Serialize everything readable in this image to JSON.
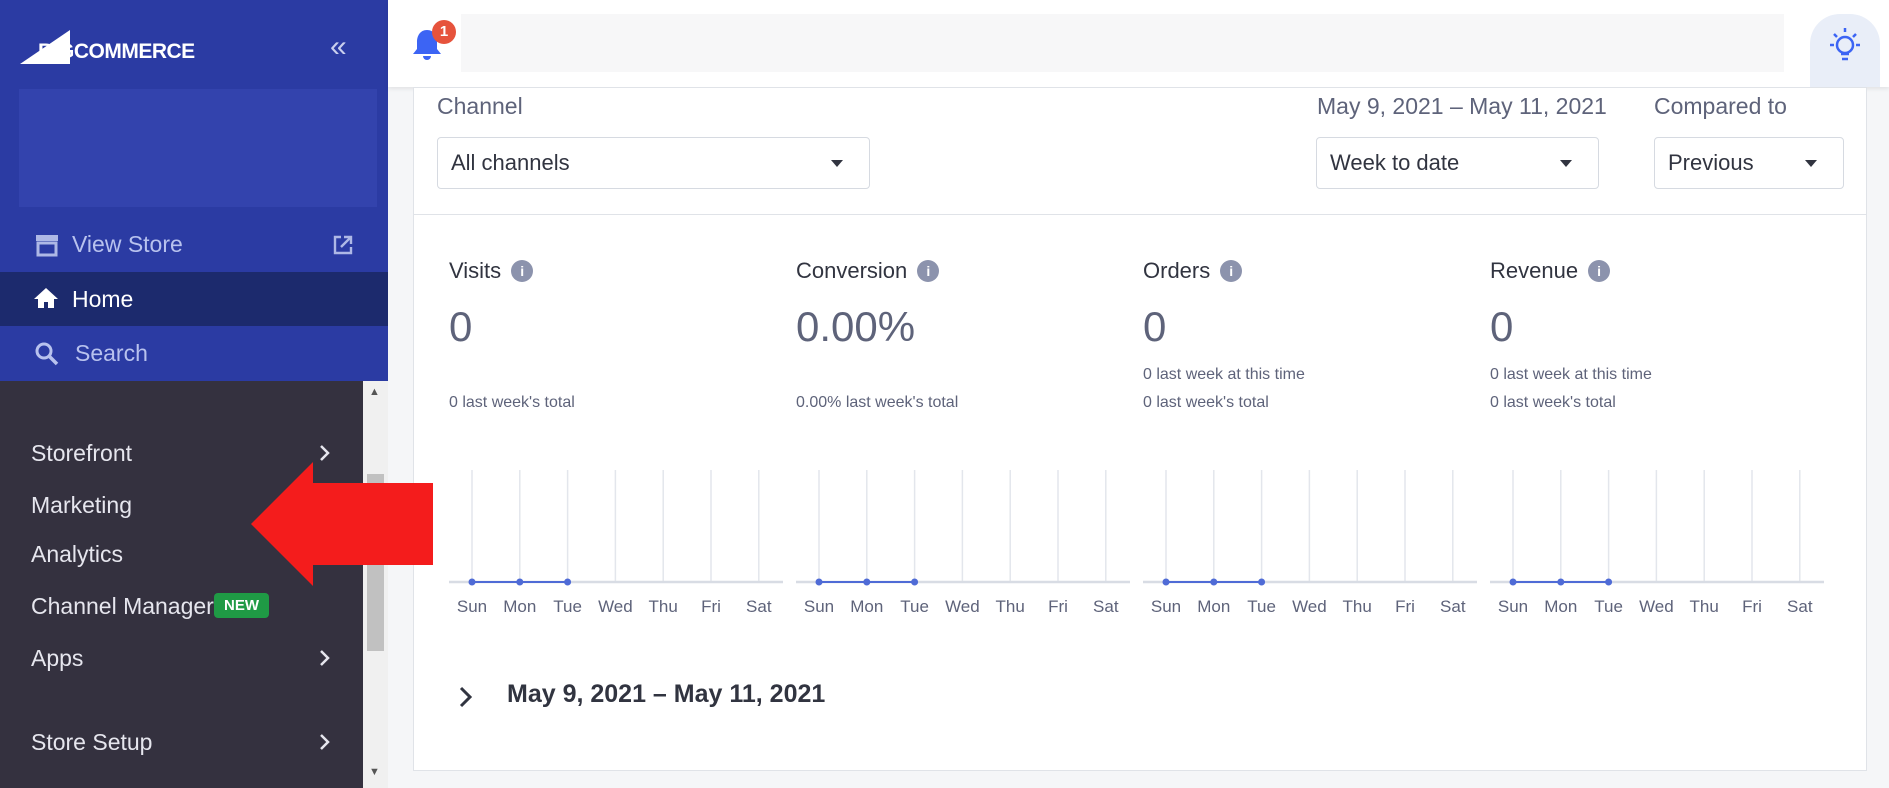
{
  "logo": "BIGCOMMERCE",
  "notifications": {
    "count": 1
  },
  "sidebar": {
    "view_store": "View Store",
    "home": "Home",
    "search": "Search",
    "menu": [
      {
        "label": "Storefront"
      },
      {
        "label": "Marketing"
      },
      {
        "label": "Analytics"
      },
      {
        "label": "Channel Manager",
        "badge": "NEW"
      },
      {
        "label": "Apps"
      },
      {
        "label": "Store Setup"
      }
    ]
  },
  "filters": {
    "channel": {
      "label": "Channel",
      "value": "All channels"
    },
    "date": {
      "label": "May 9, 2021 – May 11, 2021",
      "value": "Week to date"
    },
    "compare": {
      "label": "Compared to",
      "value": "Previous"
    }
  },
  "days": [
    "Sun",
    "Mon",
    "Tue",
    "Wed",
    "Thu",
    "Fri",
    "Sat"
  ],
  "metrics": [
    {
      "label": "Visits",
      "value": "0",
      "notes": [
        "0 last week's total"
      ],
      "trend": [
        0,
        0,
        0,
        null,
        null,
        null,
        null
      ]
    },
    {
      "label": "Conversion",
      "value": "0.00%",
      "notes": [
        "0.00% last week's total"
      ],
      "trend": [
        0,
        0,
        0,
        null,
        null,
        null,
        null
      ]
    },
    {
      "label": "Orders",
      "value": "0",
      "notes": [
        "0 last week at this time",
        "0 last week's total"
      ],
      "trend": [
        0,
        0,
        0,
        null,
        null,
        null,
        null
      ]
    },
    {
      "label": "Revenue",
      "value": "0",
      "notes": [
        "0 last week at this time",
        "0 last week's total"
      ],
      "trend": [
        0,
        0,
        0,
        null,
        null,
        null,
        null
      ]
    }
  ],
  "range_title": "May 9, 2021 – May 11, 2021"
}
